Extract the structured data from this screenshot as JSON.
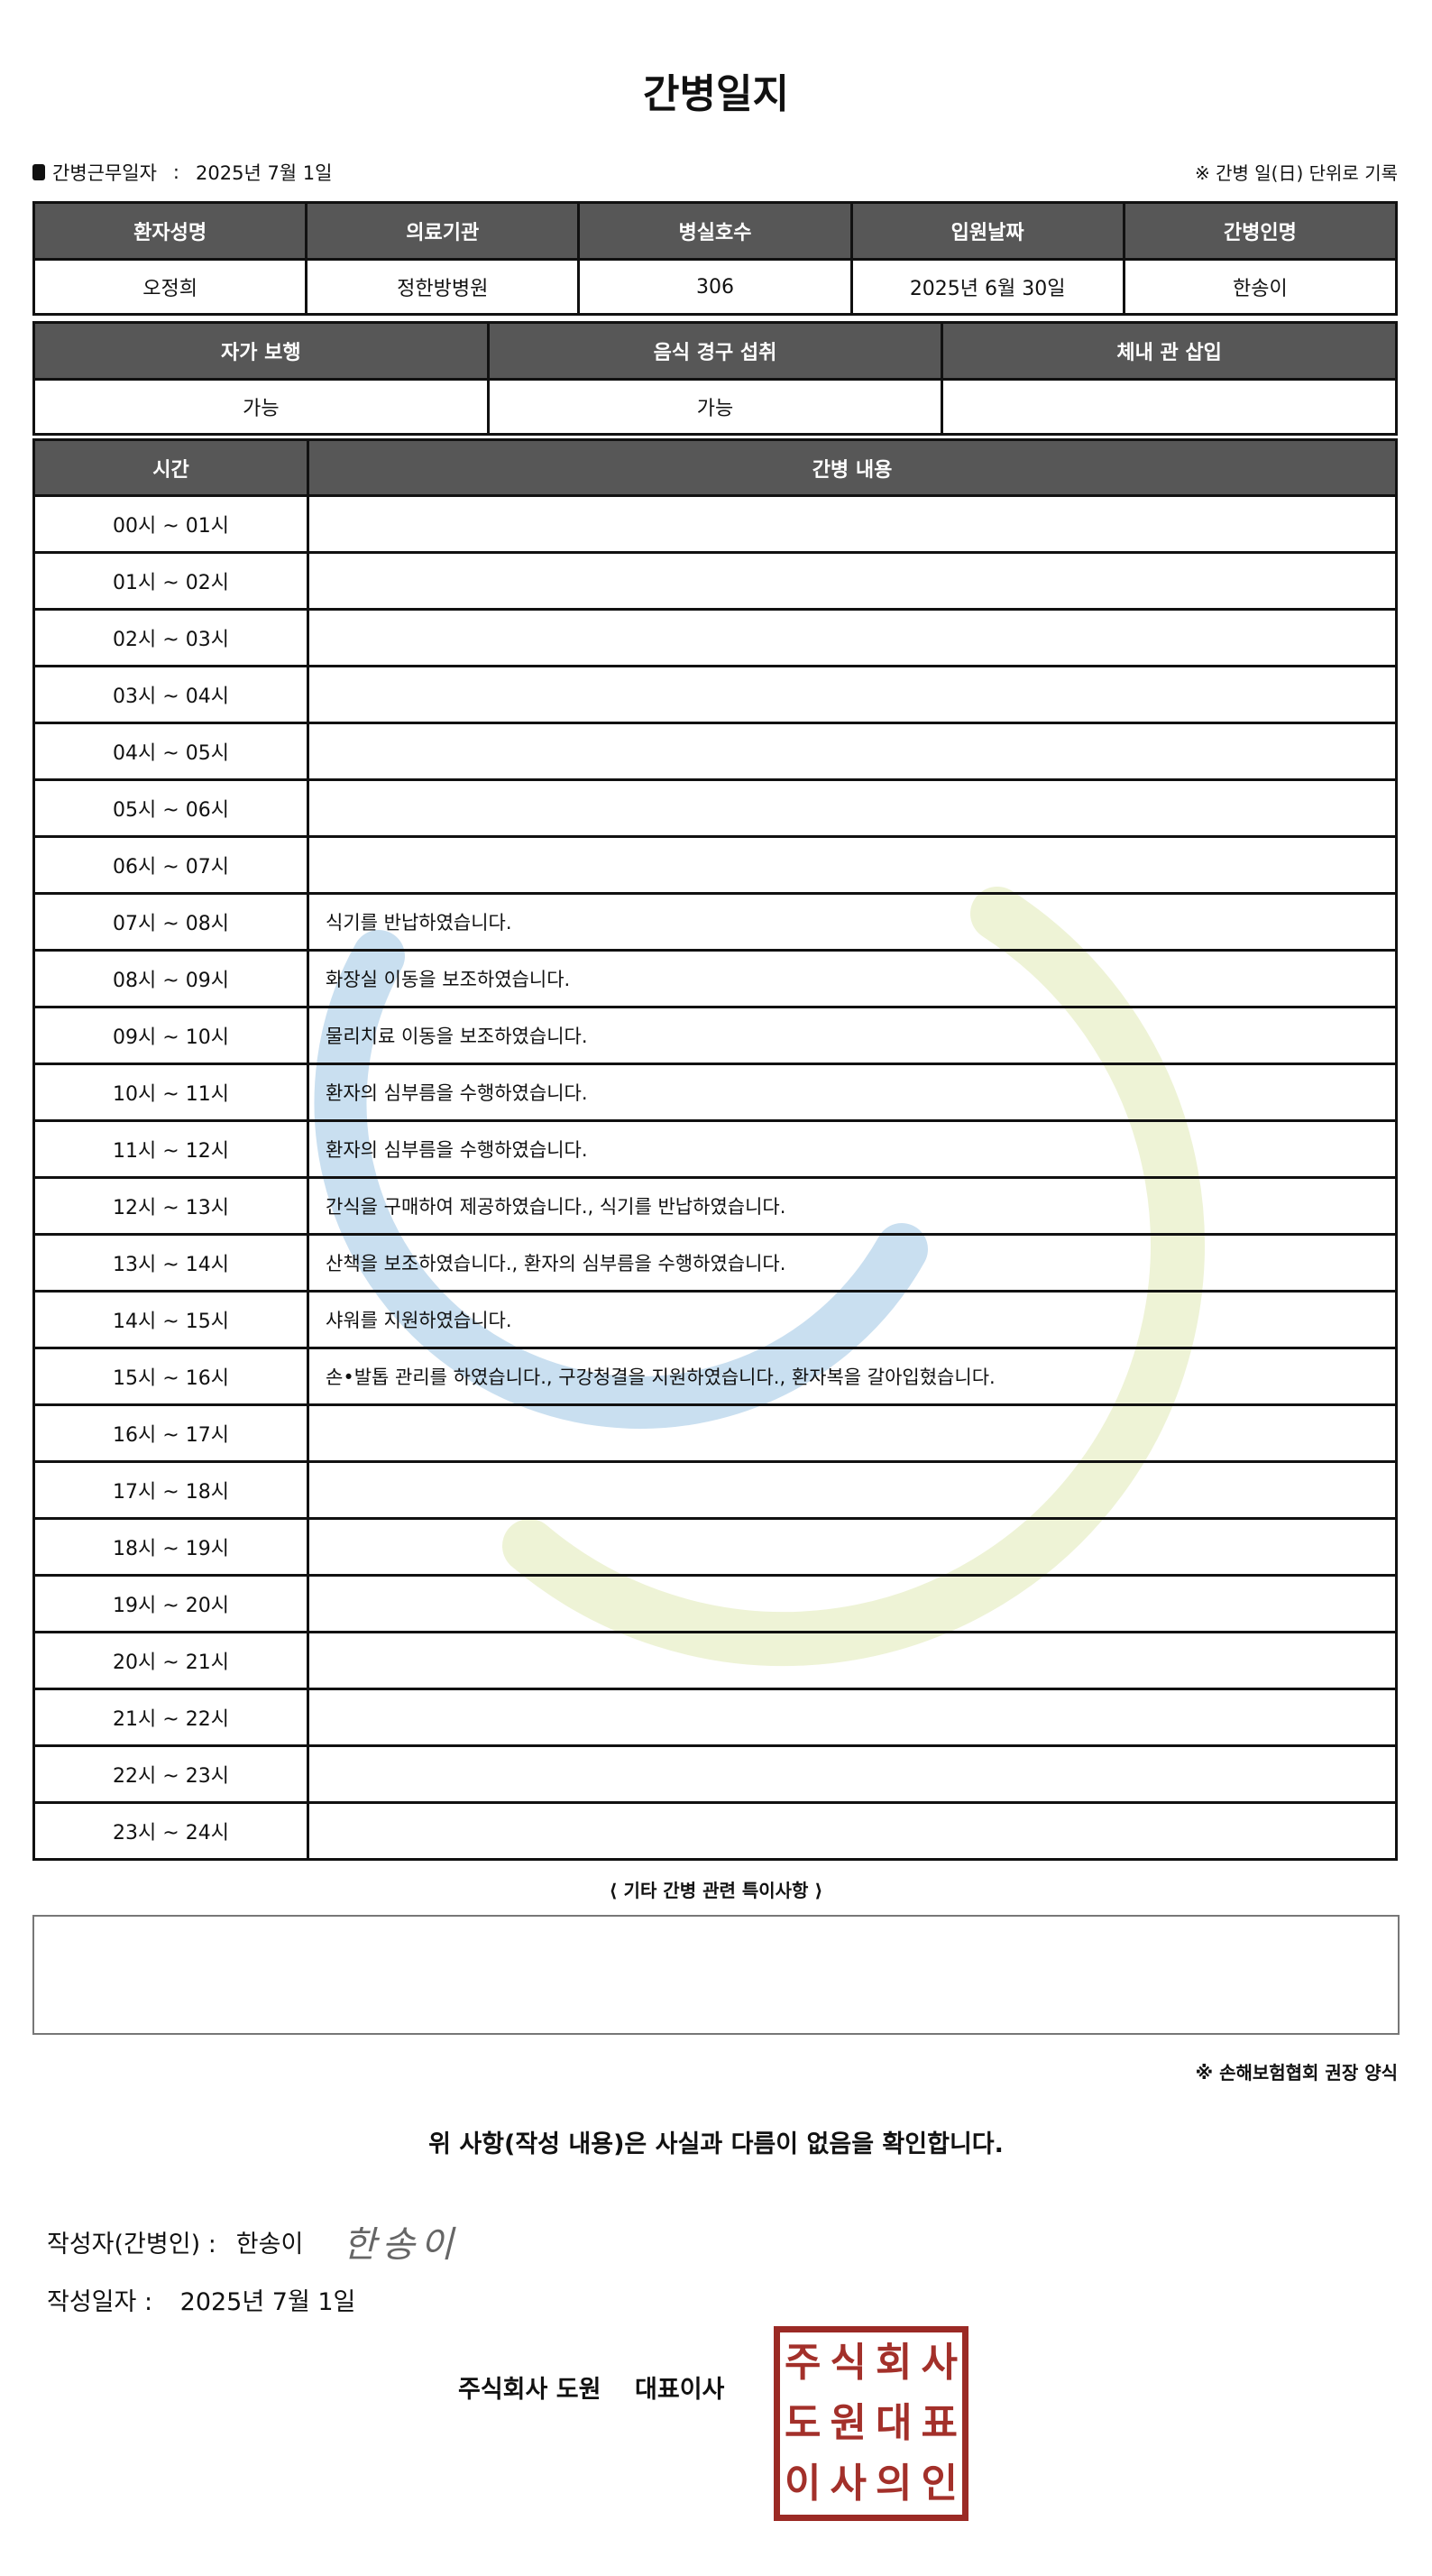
{
  "title": "간병일지",
  "duty": {
    "label": "간병근무일자",
    "separator": ":",
    "date": "2025년 7월 1일"
  },
  "note_right": "※ 간병 일(日) 단위로 기록",
  "patient_table": {
    "headers": [
      "환자성명",
      "의료기관",
      "병실호수",
      "입원날짜",
      "간병인명"
    ],
    "values": [
      "오정희",
      "정한방병원",
      "306",
      "2025년 6월 30일",
      "한송이"
    ]
  },
  "status_table": {
    "headers": [
      "자가 보행",
      "음식 경구 섭취",
      "체내 관 삽입"
    ],
    "values": [
      "가능",
      "가능",
      ""
    ]
  },
  "log_table": {
    "headers": [
      "시간",
      "간병 내용"
    ],
    "rows": [
      {
        "time": "00시 ~ 01시",
        "content": ""
      },
      {
        "time": "01시 ~ 02시",
        "content": ""
      },
      {
        "time": "02시 ~ 03시",
        "content": ""
      },
      {
        "time": "03시 ~ 04시",
        "content": ""
      },
      {
        "time": "04시 ~ 05시",
        "content": ""
      },
      {
        "time": "05시 ~ 06시",
        "content": ""
      },
      {
        "time": "06시 ~ 07시",
        "content": ""
      },
      {
        "time": "07시 ~ 08시",
        "content": "식기를 반납하였습니다."
      },
      {
        "time": "08시 ~ 09시",
        "content": "화장실 이동을 보조하였습니다."
      },
      {
        "time": "09시 ~ 10시",
        "content": "물리치료 이동을 보조하였습니다."
      },
      {
        "time": "10시 ~ 11시",
        "content": "환자의 심부름을 수행하였습니다."
      },
      {
        "time": "11시 ~ 12시",
        "content": "환자의 심부름을 수행하였습니다."
      },
      {
        "time": "12시 ~ 13시",
        "content": "간식을 구매하여 제공하였습니다., 식기를 반납하였습니다."
      },
      {
        "time": "13시 ~ 14시",
        "content": "산책을 보조하였습니다., 환자의 심부름을 수행하였습니다."
      },
      {
        "time": "14시 ~ 15시",
        "content": "샤워를 지원하였습니다."
      },
      {
        "time": "15시 ~ 16시",
        "content": "손•발톱 관리를 하였습니다., 구강청결을 지원하였습니다., 환자복을 갈아입혔습니다."
      },
      {
        "time": "16시 ~ 17시",
        "content": ""
      },
      {
        "time": "17시 ~ 18시",
        "content": ""
      },
      {
        "time": "18시 ~ 19시",
        "content": ""
      },
      {
        "time": "19시 ~ 20시",
        "content": ""
      },
      {
        "time": "20시 ~ 21시",
        "content": ""
      },
      {
        "time": "21시 ~ 22시",
        "content": ""
      },
      {
        "time": "22시 ~ 23시",
        "content": ""
      },
      {
        "time": "23시 ~ 24시",
        "content": ""
      }
    ]
  },
  "extra": {
    "label": "⟨ 기타 간병 관련 특이사항 ⟩",
    "value": ""
  },
  "association_note": "※ 손해보험협회 권장 양식",
  "confirmation": "위 사항(작성 내용)은 사실과 다름이 없음을 확인합니다.",
  "writer": {
    "label": "작성자(간병인) :",
    "name": "한송이",
    "signature": "한송이"
  },
  "written_date": {
    "label": "작성일자 :",
    "date": "2025년 7월 1일"
  },
  "company": "주식회사 도원    대표이사",
  "stamp_text": [
    "주",
    "식",
    "회",
    "사",
    "도",
    "원",
    "대",
    "표",
    "이",
    "사",
    "의",
    "인"
  ],
  "colors": {
    "header_bg": "#575757",
    "stamp": "#9b2a25",
    "watermark_blue": "#c9dff0",
    "watermark_green": "#eef3d6"
  }
}
